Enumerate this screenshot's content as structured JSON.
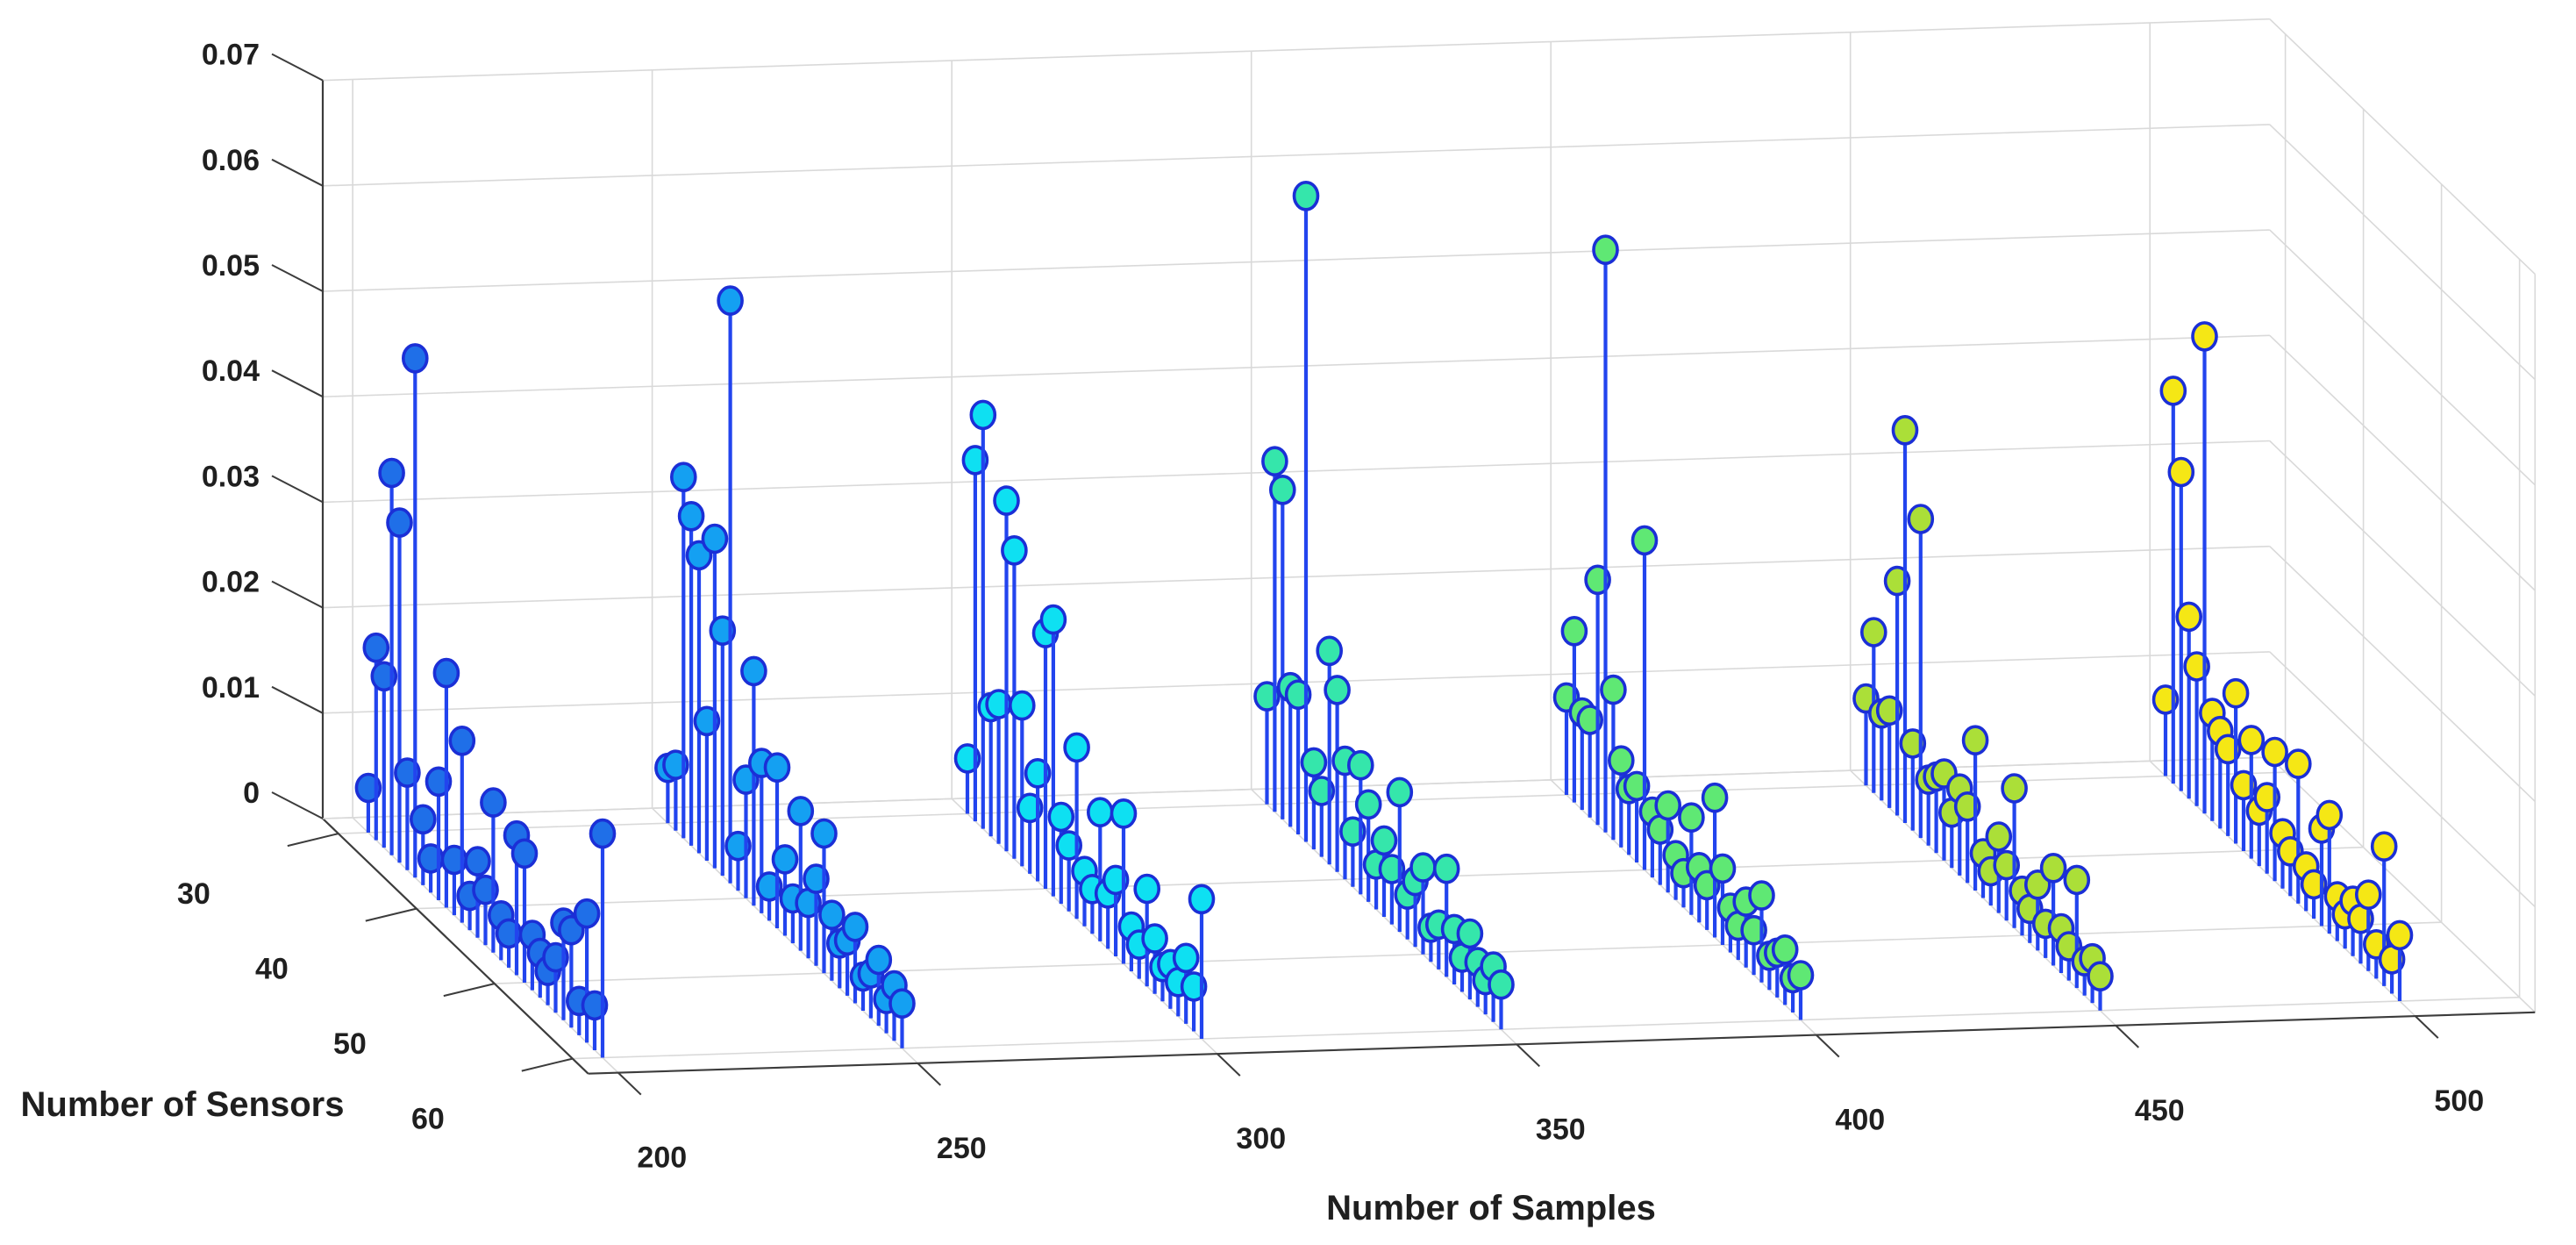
{
  "chart_data": {
    "type": "stem3",
    "title": "",
    "xlabel": "Number of Samples",
    "ylabel": "Number of Sensors",
    "zlabel": "",
    "x_ticks": [
      200,
      250,
      300,
      350,
      400,
      450,
      500
    ],
    "y_ticks": [
      30,
      40,
      50,
      60
    ],
    "z_ticks": [
      0,
      0.01,
      0.02,
      0.03,
      0.04,
      0.05,
      0.06,
      0.07
    ],
    "xlim": [
      195,
      520
    ],
    "ylim": [
      28,
      62
    ],
    "zlim": [
      0,
      0.07
    ],
    "grid": true,
    "legend": null,
    "background_color": "#ffffff",
    "grid_color": "#d9d9d9",
    "axis_color": "#3c3c3c",
    "tick_label_color": "#1f1f1f",
    "stem_color": "#2244ee",
    "marker_edge_color": "#1b2fd6",
    "sensors": [
      30,
      31,
      32,
      33,
      34,
      35,
      36,
      37,
      38,
      39,
      40,
      41,
      42,
      43,
      44,
      45,
      46,
      47,
      48,
      49,
      50,
      51,
      52,
      53,
      54,
      55,
      56,
      57,
      58,
      59,
      60
    ],
    "series": [
      {
        "name": "samples-200",
        "samples": 200,
        "marker_color": "#1f6fe8",
        "values": [
          0.003,
          0.017,
          0.015,
          0.035,
          0.031,
          0.008,
          0.048,
          0.005,
          0.002,
          0.01,
          0.021,
          0.004,
          0.016,
          0.002,
          0.006,
          0.004,
          0.013,
          0.003,
          0.002,
          0.012,
          0.011,
          0.004,
          0.003,
          0.002,
          0.004,
          0.008,
          0.008,
          0.002,
          0.011,
          0.003,
          0.02
        ]
      },
      {
        "name": "samples-250",
        "samples": 250,
        "marker_color": "#14a0f2",
        "values": [
          0.004,
          0.005,
          0.033,
          0.03,
          0.027,
          0.012,
          0.03,
          0.022,
          0.054,
          0.003,
          0.01,
          0.021,
          0.013,
          0.002,
          0.014,
          0.006,
          0.003,
          0.012,
          0.004,
          0.007,
          0.012,
          0.005,
          0.003,
          0.004,
          0.006,
          0.002,
          0.003,
          0.005,
          0.002,
          0.004,
          0.003
        ]
      },
      {
        "name": "samples-300",
        "samples": 300,
        "marker_color": "#0ee0f2",
        "values": [
          0.004,
          0.033,
          0.038,
          0.011,
          0.012,
          0.032,
          0.028,
          0.014,
          0.005,
          0.009,
          0.023,
          0.025,
          0.007,
          0.005,
          0.015,
          0.004,
          0.003,
          0.011,
          0.004,
          0.006,
          0.013,
          0.003,
          0.002,
          0.008,
          0.004,
          0.002,
          0.003,
          0.002,
          0.005,
          0.003,
          0.012
        ]
      },
      {
        "name": "samples-350",
        "samples": 350,
        "marker_color": "#35e6ab",
        "values": [
          0.009,
          0.032,
          0.03,
          0.012,
          0.012,
          0.06,
          0.007,
          0.005,
          0.019,
          0.016,
          0.01,
          0.004,
          0.011,
          0.008,
          0.003,
          0.006,
          0.004,
          0.012,
          0.003,
          0.005,
          0.007,
          0.002,
          0.003,
          0.009,
          0.004,
          0.002,
          0.005,
          0.003,
          0.002,
          0.004,
          0.003
        ]
      },
      {
        "name": "samples-400",
        "samples": 400,
        "marker_color": "#5fe874",
        "values": [
          0.008,
          0.015,
          0.008,
          0.008,
          0.022,
          0.054,
          0.013,
          0.007,
          0.005,
          0.006,
          0.03,
          0.005,
          0.004,
          0.007,
          0.003,
          0.002,
          0.008,
          0.004,
          0.003,
          0.012,
          0.006,
          0.003,
          0.002,
          0.005,
          0.003,
          0.007,
          0.002,
          0.003,
          0.004,
          0.002,
          0.003
        ]
      },
      {
        "name": "samples-450",
        "samples": 450,
        "marker_color": "#abdf38",
        "values": [
          0.007,
          0.014,
          0.007,
          0.008,
          0.021,
          0.036,
          0.007,
          0.029,
          0.005,
          0.006,
          0.007,
          0.004,
          0.007,
          0.006,
          0.013,
          0.003,
          0.002,
          0.006,
          0.004,
          0.012,
          0.003,
          0.002,
          0.005,
          0.002,
          0.008,
          0.003,
          0.002,
          0.009,
          0.002,
          0.003,
          0.002
        ]
      },
      {
        "name": "samples-500",
        "samples": 500,
        "marker_color": "#f5e715",
        "values": [
          0.006,
          0.036,
          0.029,
          0.016,
          0.012,
          0.044,
          0.009,
          0.008,
          0.007,
          0.013,
          0.005,
          0.01,
          0.004,
          0.006,
          0.011,
          0.004,
          0.003,
          0.012,
          0.003,
          0.002,
          0.008,
          0.01,
          0.003,
          0.002,
          0.004,
          0.003,
          0.006,
          0.002,
          0.012,
          0.002,
          0.005
        ]
      }
    ]
  }
}
